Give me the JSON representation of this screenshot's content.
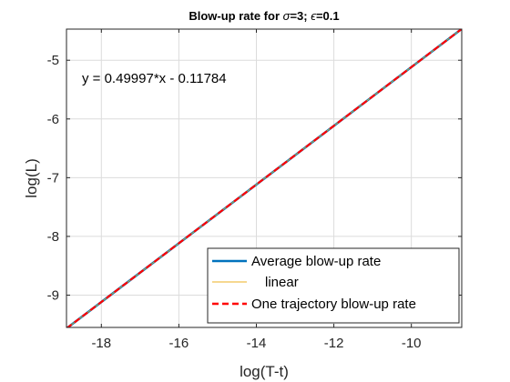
{
  "chart_data": {
    "type": "line",
    "title_prefix": "Blow-up rate for ",
    "title_sigma": "σ",
    "title_mid": "=3; ",
    "title_epsilon": "ϵ",
    "title_suffix": "=0.1",
    "xlabel": "log(T-t)",
    "ylabel": "log(L)",
    "xlim": [
      -18.9,
      -8.7
    ],
    "ylim": [
      -9.55,
      -4.47
    ],
    "xticks": [
      -18,
      -16,
      -14,
      -12,
      -10
    ],
    "yticks": [
      -9,
      -8,
      -7,
      -6,
      -5
    ],
    "grid": true,
    "annotation": "y = 0.49997*x - 0.11784",
    "legend_position": "bottom-right",
    "series": [
      {
        "name": "Average blow-up rate",
        "color": "#0072BD",
        "style": "solid",
        "x": [
          -18.9,
          -8.7
        ],
        "y": [
          -9.567,
          -4.467
        ]
      },
      {
        "name": "linear",
        "color": "#EDB120",
        "style": "solid",
        "x": [
          -18.9,
          -8.7
        ],
        "y": [
          -9.567,
          -4.467
        ]
      },
      {
        "name": "One trajectory blow-up rate",
        "color": "#FF0000",
        "style": "dashed",
        "x": [
          -18.9,
          -8.7
        ],
        "y": [
          -9.567,
          -4.467
        ]
      }
    ]
  }
}
